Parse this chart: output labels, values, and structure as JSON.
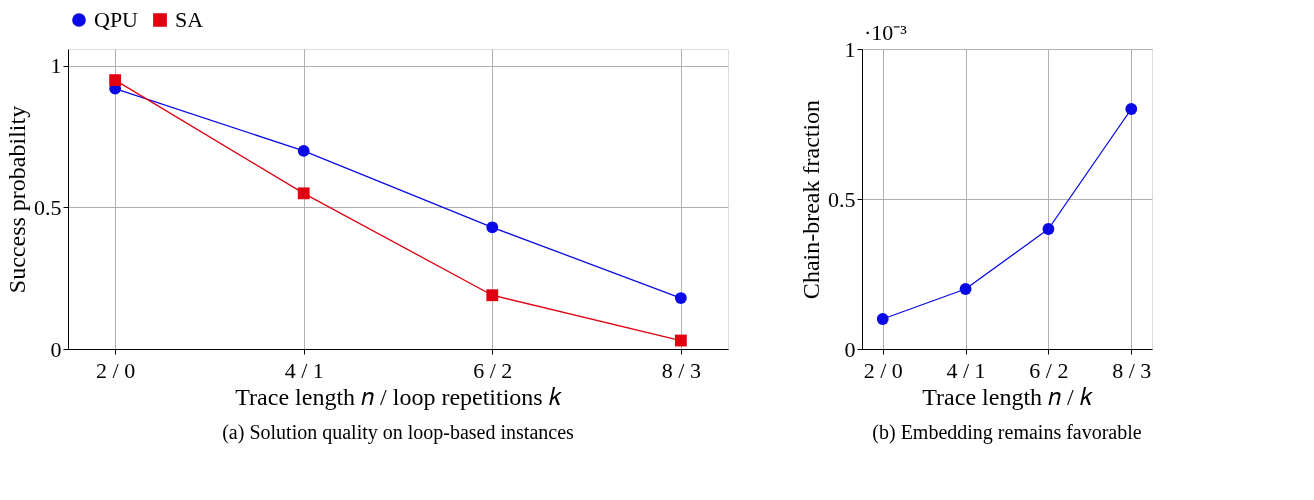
{
  "chart_data": [
    {
      "type": "line",
      "title": "(a) Solution quality on loop-based instances",
      "xlabel": "Trace length 𝑛 / loop repetitions 𝑘",
      "ylabel": "Success probability",
      "categories": [
        "2 / 0",
        "4 / 1",
        "6 / 2",
        "8 / 3"
      ],
      "series": [
        {
          "name": "QPU",
          "color": "#0a0ae6",
          "marker": "circle",
          "values": [
            0.92,
            0.7,
            0.43,
            0.18
          ]
        },
        {
          "name": "SA",
          "color": "#e00010",
          "marker": "square",
          "values": [
            0.95,
            0.55,
            0.19,
            0.03
          ]
        }
      ],
      "ylim": [
        0,
        1.06
      ],
      "yticks": [
        0,
        0.5,
        1
      ],
      "grid": true,
      "legend": "top",
      "line_style": "solid"
    },
    {
      "type": "line",
      "title": "(b) Embedding remains favorable",
      "xlabel": "Trace length 𝑛 / 𝑘",
      "ylabel": "Chain-break fraction",
      "categories": [
        "2 / 0",
        "4 / 1",
        "6 / 2",
        "8 / 3"
      ],
      "series": [
        {
          "color": "#0a0ae6",
          "marker": "circle",
          "values": [
            0.1,
            0.2,
            0.4,
            0.8
          ]
        }
      ],
      "ylim": [
        0,
        1
      ],
      "yticks": [
        0,
        0.5,
        1
      ],
      "grid": true,
      "line_style": "solid",
      "annotations": [
        "·10⁻³"
      ]
    }
  ]
}
